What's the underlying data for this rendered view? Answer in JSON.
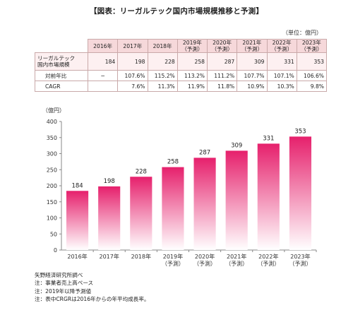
{
  "title": "【図表：リーガルテック国内市場規模推移と予測】",
  "unit_label": "（単位：億円）",
  "table": {
    "headers": [
      "2016年",
      "2017年",
      "2018年",
      "2019年\n（予測）",
      "2020年\n（予測）",
      "2021年\n（予測）",
      "2022年\n（予測）",
      "2023年\n（予測）"
    ],
    "rows": [
      {
        "label": "リーガルテック\n国内市場規模",
        "values": [
          "184",
          "198",
          "228",
          "258",
          "287",
          "309",
          "331",
          "353"
        ]
      },
      {
        "label": "対前年比",
        "values": [
          "−",
          "107.6%",
          "115.2%",
          "113.2%",
          "111.2%",
          "107.7%",
          "107.1%",
          "106.6%"
        ]
      },
      {
        "label": "CAGR",
        "values": [
          "",
          "7.6%",
          "11.3%",
          "11.9%",
          "11.8%",
          "10.9%",
          "10.3%",
          "9.8%"
        ]
      }
    ]
  },
  "chart_data": {
    "type": "bar",
    "ylabel": "（億円）",
    "categories": [
      "2016年",
      "2017年",
      "2018年",
      "2019年\n（予測）",
      "2020年\n（予測）",
      "2021年\n（予測）",
      "2022年\n（予測）",
      "2023年\n（予測）"
    ],
    "values": [
      184,
      198,
      228,
      258,
      287,
      309,
      331,
      353
    ],
    "ylim": [
      0,
      400
    ],
    "yticks": [
      0,
      50,
      100,
      150,
      200,
      250,
      300,
      350,
      400
    ],
    "grid": false,
    "bar_gradient": [
      "#e6206c",
      "#ffffff"
    ]
  },
  "notes": [
    "矢野経済研究所調べ",
    "注：事業者売上高ベース",
    "注：2019年以降予測値",
    "注：表中CRGRは2016年からの年平均成長率。"
  ]
}
